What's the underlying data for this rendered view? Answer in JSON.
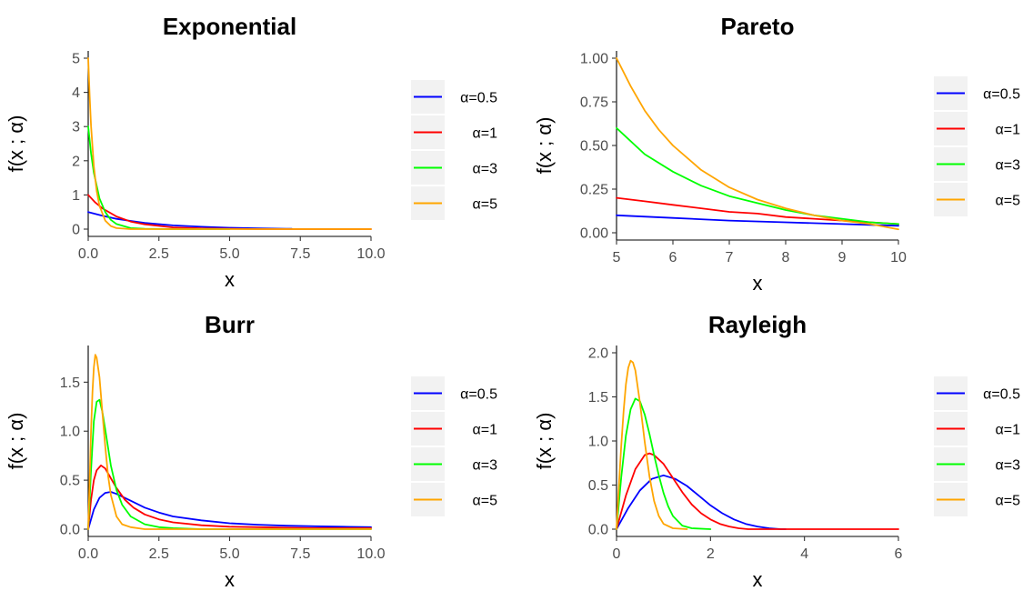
{
  "chart_data": [
    {
      "type": "line",
      "title": "Exponential",
      "xlabel": "x",
      "ylabel": "f(x ; α)",
      "xlim": [
        0,
        10
      ],
      "ylim": [
        0,
        5
      ],
      "xticks": [
        0,
        2.5,
        5,
        7.5,
        10
      ],
      "xtick_labels": [
        "0.0",
        "2.5",
        "5.0",
        "7.5",
        "10.0"
      ],
      "yticks": [
        0,
        1,
        2,
        3,
        4,
        5
      ],
      "ytick_labels": [
        "0",
        "1",
        "2",
        "3",
        "4",
        "5"
      ],
      "legend_position": "right",
      "series": [
        {
          "name": "α=0.5",
          "color": "#0000ff",
          "x": [
            0,
            0.5,
            1,
            1.5,
            2,
            3,
            4,
            5,
            6,
            7,
            7.2
          ],
          "y": [
            0.5,
            0.39,
            0.3,
            0.24,
            0.18,
            0.11,
            0.07,
            0.04,
            0.02,
            0.01,
            0.01
          ]
        },
        {
          "name": "α=1",
          "color": "#ff0000",
          "x": [
            0,
            0.25,
            0.5,
            1,
            1.5,
            2,
            3,
            4,
            5,
            6,
            7,
            8,
            9,
            10
          ],
          "y": [
            1,
            0.78,
            0.61,
            0.37,
            0.22,
            0.14,
            0.05,
            0.02,
            0.01,
            0,
            0,
            0,
            0,
            0
          ]
        },
        {
          "name": "α=3",
          "color": "#00ff00",
          "x": [
            0,
            0.1,
            0.2,
            0.4,
            0.6,
            0.8,
            1,
            1.5,
            2,
            3,
            4,
            5
          ],
          "y": [
            3,
            2.22,
            1.65,
            0.9,
            0.5,
            0.27,
            0.15,
            0.03,
            0.01,
            0,
            0,
            0
          ]
        },
        {
          "name": "α=5",
          "color": "#ffa500",
          "x": [
            0,
            0.05,
            0.1,
            0.2,
            0.3,
            0.4,
            0.6,
            0.8,
            1,
            1.5,
            2,
            3,
            4,
            5,
            6,
            7,
            8,
            9,
            10
          ],
          "y": [
            5,
            3.89,
            3.03,
            1.84,
            1.12,
            0.68,
            0.25,
            0.09,
            0.03,
            0,
            0,
            0,
            0,
            0,
            0,
            0,
            0,
            0,
            0
          ]
        }
      ]
    },
    {
      "type": "line",
      "title": "Pareto",
      "xlabel": "x",
      "ylabel": "f(x ; α)",
      "xlim": [
        5,
        10
      ],
      "ylim": [
        0,
        1
      ],
      "xticks": [
        5,
        6,
        7,
        8,
        9,
        10
      ],
      "xtick_labels": [
        "5",
        "6",
        "7",
        "8",
        "9",
        "10"
      ],
      "yticks": [
        0,
        0.25,
        0.5,
        0.75,
        1
      ],
      "ytick_labels": [
        "0.00",
        "0.25",
        "0.50",
        "0.75",
        "1.00"
      ],
      "legend_position": "right",
      "series": [
        {
          "name": "α=0.5",
          "color": "#0000ff",
          "x": [
            5,
            6,
            7,
            8,
            9,
            10
          ],
          "y": [
            0.1,
            0.085,
            0.07,
            0.06,
            0.05,
            0.04
          ]
        },
        {
          "name": "α=1",
          "color": "#ff0000",
          "x": [
            5,
            5.5,
            6,
            6.5,
            7,
            7.5,
            8,
            8.5,
            9,
            9.5,
            10
          ],
          "y": [
            0.2,
            0.18,
            0.16,
            0.14,
            0.12,
            0.11,
            0.09,
            0.08,
            0.07,
            0.06,
            0.05
          ]
        },
        {
          "name": "α=3",
          "color": "#00ff00",
          "x": [
            5,
            5.5,
            6,
            6.5,
            7,
            7.5,
            8,
            8.5,
            9,
            9.5,
            10
          ],
          "y": [
            0.6,
            0.45,
            0.35,
            0.27,
            0.21,
            0.17,
            0.13,
            0.1,
            0.08,
            0.06,
            0.05
          ]
        },
        {
          "name": "α=5",
          "color": "#ffa500",
          "x": [
            5,
            5.25,
            5.5,
            5.75,
            6,
            6.5,
            7,
            7.5,
            8,
            8.5,
            9,
            9.5,
            10
          ],
          "y": [
            1,
            0.84,
            0.7,
            0.59,
            0.5,
            0.36,
            0.26,
            0.19,
            0.14,
            0.1,
            0.07,
            0.05,
            0.02
          ]
        }
      ]
    },
    {
      "type": "line",
      "title": "Burr",
      "xlabel": "x",
      "ylabel": "f(x ; α)",
      "xlim": [
        0,
        10
      ],
      "ylim": [
        0,
        1.8
      ],
      "xticks": [
        0,
        2.5,
        5,
        7.5,
        10
      ],
      "xtick_labels": [
        "0.0",
        "2.5",
        "5.0",
        "7.5",
        "10.0"
      ],
      "yticks": [
        0,
        0.5,
        1,
        1.5
      ],
      "ytick_labels": [
        "0.0",
        "0.5",
        "1.0",
        "1.5"
      ],
      "legend_position": "right",
      "series": [
        {
          "name": "α=0.5",
          "color": "#0000ff",
          "x": [
            0,
            0.2,
            0.4,
            0.6,
            0.8,
            1,
            1.5,
            2,
            2.5,
            3,
            4,
            5,
            6,
            7,
            8,
            9,
            10
          ],
          "y": [
            0,
            0.2,
            0.32,
            0.37,
            0.38,
            0.36,
            0.29,
            0.22,
            0.17,
            0.13,
            0.09,
            0.06,
            0.045,
            0.035,
            0.03,
            0.025,
            0.02
          ]
        },
        {
          "name": "α=1",
          "color": "#ff0000",
          "x": [
            0,
            0.1,
            0.2,
            0.3,
            0.45,
            0.6,
            0.8,
            1,
            1.3,
            1.6,
            2,
            2.5,
            3,
            4,
            5,
            6,
            7,
            8,
            9,
            10
          ],
          "y": [
            0,
            0.3,
            0.5,
            0.6,
            0.65,
            0.62,
            0.52,
            0.42,
            0.3,
            0.22,
            0.15,
            0.1,
            0.07,
            0.04,
            0.025,
            0.02,
            0.015,
            0.01,
            0.01,
            0.01
          ]
        },
        {
          "name": "α=3",
          "color": "#00ff00",
          "x": [
            0,
            0.1,
            0.2,
            0.3,
            0.4,
            0.5,
            0.6,
            0.8,
            1,
            1.2,
            1.5,
            2,
            2.5,
            3,
            4,
            5,
            6,
            7,
            8,
            9,
            10
          ],
          "y": [
            0,
            0.6,
            1.1,
            1.3,
            1.32,
            1.2,
            1.02,
            0.65,
            0.4,
            0.25,
            0.13,
            0.05,
            0.02,
            0.01,
            0,
            0,
            0,
            0,
            0,
            0,
            0
          ]
        },
        {
          "name": "α=5",
          "color": "#ffa500",
          "x": [
            0,
            0.05,
            0.1,
            0.15,
            0.2,
            0.25,
            0.3,
            0.4,
            0.5,
            0.6,
            0.7,
            0.8,
            1,
            1.2,
            1.5,
            2,
            3,
            4,
            5,
            6,
            7,
            8,
            9,
            10
          ],
          "y": [
            0,
            0.5,
            1,
            1.4,
            1.65,
            1.78,
            1.75,
            1.55,
            1.2,
            0.85,
            0.55,
            0.35,
            0.13,
            0.05,
            0.02,
            0,
            0,
            0,
            0,
            0,
            0,
            0,
            0,
            0
          ]
        }
      ]
    },
    {
      "type": "line",
      "title": "Rayleigh",
      "xlabel": "x",
      "ylabel": "f(x ; α)",
      "xlim": [
        0,
        6
      ],
      "ylim": [
        0,
        2
      ],
      "xticks": [
        0,
        2,
        4,
        6
      ],
      "xtick_labels": [
        "0",
        "2",
        "4",
        "6"
      ],
      "yticks": [
        0,
        0.5,
        1,
        1.5,
        2
      ],
      "ytick_labels": [
        "0.0",
        "0.5",
        "1.0",
        "1.5",
        "2.0"
      ],
      "legend_position": "right",
      "series": [
        {
          "name": "α=0.5",
          "color": "#0000ff",
          "x": [
            0,
            0.25,
            0.5,
            0.75,
            1,
            1.25,
            1.5,
            1.75,
            2,
            2.25,
            2.5,
            2.75,
            3,
            3.25,
            3.5,
            3.6
          ],
          "y": [
            0,
            0.24,
            0.44,
            0.57,
            0.61,
            0.57,
            0.49,
            0.38,
            0.27,
            0.18,
            0.11,
            0.06,
            0.03,
            0.01,
            0,
            0
          ]
        },
        {
          "name": "α=1",
          "color": "#ff0000",
          "x": [
            0,
            0.2,
            0.4,
            0.6,
            0.7,
            0.8,
            1,
            1.2,
            1.4,
            1.6,
            1.8,
            2,
            2.2,
            2.4,
            2.6,
            2.8,
            3,
            4,
            5,
            6
          ],
          "y": [
            0,
            0.38,
            0.68,
            0.84,
            0.86,
            0.84,
            0.74,
            0.58,
            0.42,
            0.28,
            0.18,
            0.11,
            0.06,
            0.03,
            0.01,
            0,
            0,
            0,
            0,
            0
          ]
        },
        {
          "name": "α=3",
          "color": "#00ff00",
          "x": [
            0,
            0.1,
            0.2,
            0.3,
            0.4,
            0.5,
            0.6,
            0.7,
            0.8,
            0.9,
            1,
            1.1,
            1.2,
            1.4,
            1.6,
            2
          ],
          "y": [
            0,
            0.59,
            1.06,
            1.36,
            1.48,
            1.45,
            1.3,
            1.08,
            0.84,
            0.61,
            0.41,
            0.26,
            0.15,
            0.04,
            0.01,
            0
          ]
        },
        {
          "name": "α=5",
          "color": "#ffa500",
          "x": [
            0,
            0.05,
            0.1,
            0.15,
            0.2,
            0.25,
            0.3,
            0.35,
            0.4,
            0.5,
            0.6,
            0.7,
            0.8,
            0.9,
            1,
            1.2,
            1.5
          ],
          "y": [
            0,
            0.49,
            0.95,
            1.34,
            1.64,
            1.83,
            1.91,
            1.89,
            1.8,
            1.43,
            0.99,
            0.6,
            0.32,
            0.15,
            0.06,
            0.01,
            0
          ]
        }
      ]
    }
  ]
}
